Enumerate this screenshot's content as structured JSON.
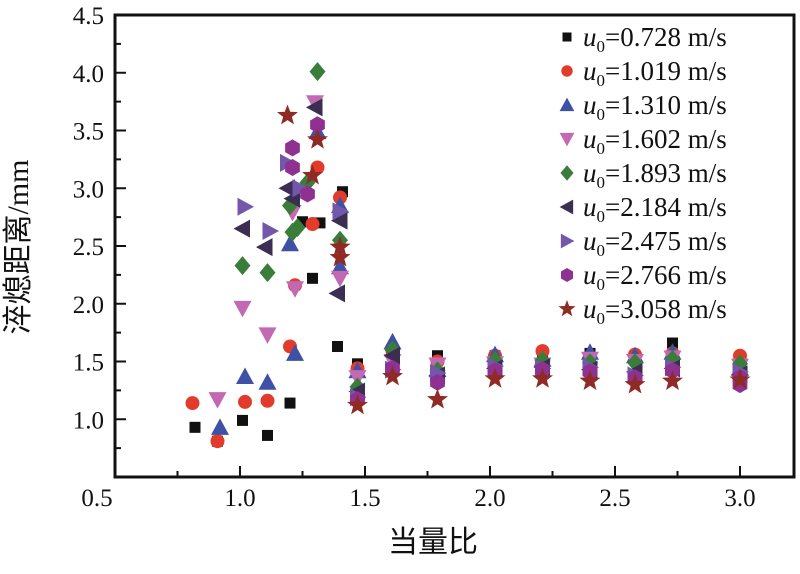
{
  "figure": {
    "background": "#ffffff",
    "axis_color": "#111111"
  },
  "chart_data": {
    "type": "scatter",
    "title": "",
    "xlabel": "当量比",
    "ylabel": "淬熄距离/mm",
    "xlim": [
      0.5,
      3.216
    ],
    "ylim": [
      0.5,
      4.5
    ],
    "x_major_ticks": [
      0.5,
      1.0,
      1.5,
      2.0,
      2.5,
      3.0
    ],
    "x_tick_labels": [
      "0.5",
      "1.0",
      "1.5",
      "2.0",
      "2.5",
      "3.0"
    ],
    "y_major_ticks": [
      0.5,
      1.0,
      1.5,
      2.0,
      2.5,
      3.0,
      3.5,
      4.0,
      4.5
    ],
    "y_tick_labels": [
      "",
      "1.0",
      "1.5",
      "2.0",
      "2.5",
      "3.0",
      "3.5",
      "4.0",
      "4.5"
    ],
    "minor_tick_step": 0.25,
    "grid": false,
    "legend_position": "top-right",
    "series": [
      {
        "label": "u0=0.728 m/s",
        "label_parts": {
          "var": "u",
          "sub": "0",
          "rest": "=0.728 m/s"
        },
        "marker": "square",
        "color": "#111111",
        "points": [
          [
            0.82,
            0.93
          ],
          [
            0.91,
            0.81
          ],
          [
            1.01,
            0.99
          ],
          [
            1.11,
            0.86
          ],
          [
            1.2,
            1.14
          ],
          [
            1.25,
            2.71
          ],
          [
            1.32,
            2.7
          ],
          [
            1.29,
            2.22
          ],
          [
            1.39,
            1.63
          ],
          [
            1.41,
            2.97
          ],
          [
            1.47,
            1.48
          ],
          [
            1.79,
            1.55
          ],
          [
            2.02,
            1.55
          ],
          [
            2.21,
            1.57
          ],
          [
            2.4,
            1.57
          ],
          [
            2.58,
            1.55
          ],
          [
            2.73,
            1.66
          ],
          [
            3.0,
            1.5
          ]
        ]
      },
      {
        "label": "u0=1.019 m/s",
        "label_parts": {
          "var": "u",
          "sub": "0",
          "rest": "=1.019 m/s"
        },
        "marker": "circle",
        "color": "#e23b2c",
        "points": [
          [
            0.81,
            1.14
          ],
          [
            0.91,
            0.81
          ],
          [
            1.02,
            1.15
          ],
          [
            1.11,
            1.16
          ],
          [
            1.2,
            1.63
          ],
          [
            1.22,
            2.16
          ],
          [
            1.29,
            2.69
          ],
          [
            1.31,
            3.18
          ],
          [
            1.4,
            2.92
          ],
          [
            1.47,
            1.44
          ],
          [
            1.61,
            1.59
          ],
          [
            1.79,
            1.5
          ],
          [
            2.02,
            1.55
          ],
          [
            2.21,
            1.59
          ],
          [
            2.4,
            1.54
          ],
          [
            2.58,
            1.56
          ],
          [
            2.73,
            1.57
          ],
          [
            3.0,
            1.55
          ]
        ]
      },
      {
        "label": "u0=1.310 m/s",
        "label_parts": {
          "var": "u",
          "sub": "0",
          "rest": "=1.310 m/s"
        },
        "marker": "triangle-up",
        "color": "#3f51a5",
        "points": [
          [
            0.92,
            0.93
          ],
          [
            1.02,
            1.37
          ],
          [
            1.11,
            1.32
          ],
          [
            1.2,
            2.52
          ],
          [
            1.22,
            1.57
          ],
          [
            1.31,
            3.49
          ],
          [
            1.4,
            2.85
          ],
          [
            1.4,
            2.32
          ],
          [
            1.47,
            1.42
          ],
          [
            1.61,
            1.67
          ],
          [
            1.79,
            1.43
          ],
          [
            2.02,
            1.56
          ],
          [
            2.21,
            1.52
          ],
          [
            2.4,
            1.58
          ],
          [
            2.58,
            1.55
          ],
          [
            2.73,
            1.58
          ],
          [
            3.0,
            1.44
          ]
        ]
      },
      {
        "label": "u0=1.602 m/s",
        "label_parts": {
          "var": "u",
          "sub": "0",
          "rest": "=1.602 m/s"
        },
        "marker": "triangle-down",
        "color": "#c369b3",
        "points": [
          [
            0.91,
            1.17
          ],
          [
            1.01,
            1.96
          ],
          [
            1.11,
            1.73
          ],
          [
            1.22,
            2.13
          ],
          [
            1.21,
            2.79
          ],
          [
            1.3,
            3.74
          ],
          [
            1.4,
            2.22
          ],
          [
            1.47,
            1.36
          ],
          [
            1.61,
            1.5
          ],
          [
            1.79,
            1.47
          ],
          [
            2.02,
            1.48
          ],
          [
            2.21,
            1.47
          ],
          [
            2.4,
            1.52
          ],
          [
            2.58,
            1.5
          ],
          [
            2.73,
            1.53
          ],
          [
            3.0,
            1.46
          ]
        ]
      },
      {
        "label": "u0=1.893 m/s",
        "label_parts": {
          "var": "u",
          "sub": "0",
          "rest": "=1.893 m/s"
        },
        "marker": "diamond",
        "color": "#3a7d3a",
        "points": [
          [
            1.01,
            2.33
          ],
          [
            1.11,
            2.27
          ],
          [
            1.2,
            2.85
          ],
          [
            1.21,
            2.62
          ],
          [
            1.23,
            2.66
          ],
          [
            1.27,
            3.05
          ],
          [
            1.31,
            4.01
          ],
          [
            1.4,
            2.55
          ],
          [
            1.47,
            1.28
          ],
          [
            1.61,
            1.6
          ],
          [
            1.79,
            1.42
          ],
          [
            2.02,
            1.51
          ],
          [
            2.21,
            1.51
          ],
          [
            2.4,
            1.49
          ],
          [
            2.58,
            1.49
          ],
          [
            2.73,
            1.52
          ],
          [
            3.0,
            1.48
          ]
        ]
      },
      {
        "label": "u0=2.184 m/s",
        "label_parts": {
          "var": "u",
          "sub": "0",
          "rest": "=2.184 m/s"
        },
        "marker": "triangle-left",
        "color": "#3b2e52",
        "points": [
          [
            1.01,
            2.65
          ],
          [
            1.1,
            2.49
          ],
          [
            1.19,
            3.0
          ],
          [
            1.21,
            2.91
          ],
          [
            1.3,
            3.7
          ],
          [
            1.39,
            2.09
          ],
          [
            1.4,
            2.72
          ],
          [
            1.47,
            1.24
          ],
          [
            1.61,
            1.55
          ],
          [
            1.79,
            1.38
          ],
          [
            2.02,
            1.44
          ],
          [
            2.21,
            1.45
          ],
          [
            2.4,
            1.43
          ],
          [
            2.58,
            1.41
          ],
          [
            2.73,
            1.44
          ],
          [
            3.0,
            1.39
          ]
        ]
      },
      {
        "label": "u0=2.475 m/s",
        "label_parts": {
          "var": "u",
          "sub": "0",
          "rest": "=2.475 m/s"
        },
        "marker": "triangle-right",
        "color": "#7257ab",
        "points": [
          [
            1.02,
            2.84
          ],
          [
            1.12,
            2.63
          ],
          [
            1.19,
            3.22
          ],
          [
            1.24,
            3.0
          ],
          [
            1.4,
            2.8
          ],
          [
            1.47,
            1.19
          ],
          [
            1.61,
            1.43
          ],
          [
            1.79,
            1.4
          ],
          [
            2.02,
            1.46
          ],
          [
            2.21,
            1.44
          ],
          [
            2.4,
            1.45
          ],
          [
            2.58,
            1.38
          ],
          [
            2.73,
            1.45
          ],
          [
            3.0,
            1.41
          ]
        ]
      },
      {
        "label": "u0=2.766 m/s",
        "label_parts": {
          "var": "u",
          "sub": "0",
          "rest": "=2.766 m/s"
        },
        "marker": "hexagon",
        "color": "#8e3190",
        "points": [
          [
            1.21,
            3.35
          ],
          [
            1.21,
            3.18
          ],
          [
            1.27,
            2.95
          ],
          [
            1.31,
            3.55
          ],
          [
            1.47,
            1.17
          ],
          [
            1.61,
            1.44
          ],
          [
            1.79,
            1.32
          ],
          [
            2.02,
            1.42
          ],
          [
            2.21,
            1.43
          ],
          [
            2.4,
            1.41
          ],
          [
            2.58,
            1.36
          ],
          [
            2.73,
            1.42
          ],
          [
            3.0,
            1.36
          ],
          [
            3.0,
            1.3
          ]
        ]
      },
      {
        "label": "u0=3.058 m/s",
        "label_parts": {
          "var": "u",
          "sub": "0",
          "rest": "=3.058 m/s"
        },
        "marker": "star",
        "color": "#8f2b24",
        "points": [
          [
            1.19,
            3.63
          ],
          [
            1.29,
            3.11
          ],
          [
            1.31,
            3.42
          ],
          [
            1.4,
            2.49
          ],
          [
            1.4,
            2.4
          ],
          [
            1.47,
            1.12
          ],
          [
            1.61,
            1.37
          ],
          [
            1.79,
            1.17
          ],
          [
            2.02,
            1.35
          ],
          [
            2.21,
            1.35
          ],
          [
            2.4,
            1.33
          ],
          [
            2.58,
            1.3
          ],
          [
            2.73,
            1.33
          ],
          [
            3.0,
            1.34
          ]
        ]
      }
    ]
  }
}
